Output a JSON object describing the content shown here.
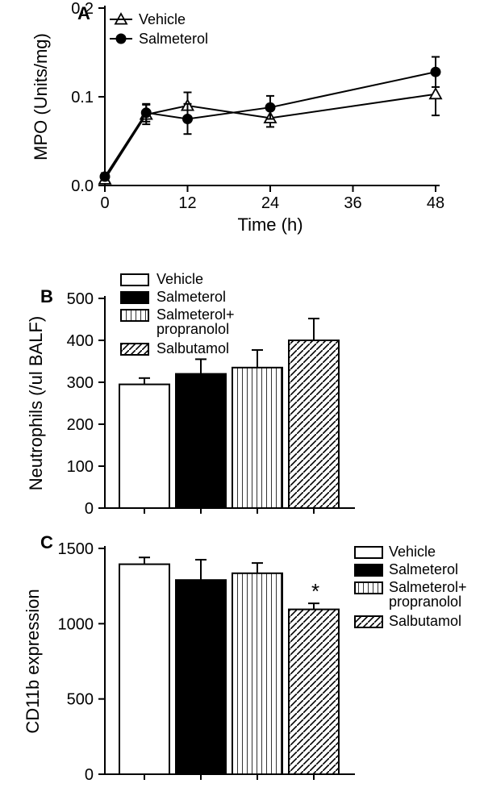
{
  "A": {
    "type": "line",
    "panel_label": "A",
    "x_title": "Time (h)",
    "y_title": "MPO (Units/mg)",
    "xlim": [
      0,
      48
    ],
    "ylim": [
      0,
      0.2
    ],
    "xticks": [
      0,
      12,
      24,
      36,
      48
    ],
    "yticks": [
      0.0,
      0.1,
      0.2
    ],
    "legend": [
      "Vehicle",
      "Salmeterol"
    ],
    "series": {
      "vehicle": {
        "marker": "triangle-open",
        "color": "#000000",
        "points": [
          {
            "x": 0,
            "y": 0.007,
            "err": 0.004
          },
          {
            "x": 6,
            "y": 0.08,
            "err": 0.011
          },
          {
            "x": 12,
            "y": 0.09,
            "err": 0.015
          },
          {
            "x": 24,
            "y": 0.076,
            "err": 0.01
          },
          {
            "x": 48,
            "y": 0.103,
            "err": 0.024
          }
        ]
      },
      "salmeterol": {
        "marker": "circle-filled",
        "color": "#000000",
        "points": [
          {
            "x": 0,
            "y": 0.01,
            "err": 0.004
          },
          {
            "x": 6,
            "y": 0.082,
            "err": 0.01
          },
          {
            "x": 12,
            "y": 0.075,
            "err": 0.017
          },
          {
            "x": 24,
            "y": 0.088,
            "err": 0.013
          },
          {
            "x": 48,
            "y": 0.128,
            "err": 0.017
          }
        ]
      }
    }
  },
  "B": {
    "type": "bar",
    "panel_label": "B",
    "y_title": "Neutrophils (/ul BALF)",
    "ylim": [
      0,
      500
    ],
    "yticks": [
      0,
      100,
      200,
      300,
      400,
      500
    ],
    "legend": [
      "Vehicle",
      "Salmeterol",
      "Salmeterol+\npropranolol",
      "Salbutamol"
    ],
    "bars": [
      {
        "label": "Vehicle",
        "value": 295,
        "err": 15,
        "fill": "#ffffff",
        "pattern": "none"
      },
      {
        "label": "Salmeterol",
        "value": 320,
        "err": 35,
        "fill": "#000000",
        "pattern": "solid"
      },
      {
        "label": "Salmeterol+propranolol",
        "value": 335,
        "err": 42,
        "fill": "#ffffff",
        "pattern": "vertical"
      },
      {
        "label": "Salbutamol",
        "value": 400,
        "err": 52,
        "fill": "#ffffff",
        "pattern": "diagonal"
      }
    ]
  },
  "C": {
    "type": "bar",
    "panel_label": "C",
    "y_title": "CD11b expression",
    "ylim": [
      0,
      1500
    ],
    "yticks": [
      0,
      500,
      1000,
      1500
    ],
    "legend": [
      "Vehicle",
      "Salmeterol",
      "Salmeterol+\npropranolol",
      "Salbutamol"
    ],
    "bars": [
      {
        "label": "Vehicle",
        "value": 1395,
        "err": 45,
        "fill": "#ffffff",
        "pattern": "none",
        "sig": ""
      },
      {
        "label": "Salmeterol",
        "value": 1290,
        "err": 135,
        "fill": "#000000",
        "pattern": "solid",
        "sig": ""
      },
      {
        "label": "Salmeterol+propranolol",
        "value": 1335,
        "err": 68,
        "fill": "#ffffff",
        "pattern": "vertical",
        "sig": ""
      },
      {
        "label": "Salbutamol",
        "value": 1095,
        "err": 40,
        "fill": "#ffffff",
        "pattern": "diagonal",
        "sig": "*"
      }
    ]
  },
  "colors": {
    "background": "#ffffff",
    "axis": "#000000",
    "text": "#000000"
  },
  "fonts": {
    "panel_label_pt": 22,
    "axis_title_pt": 22,
    "tick_label_pt": 20,
    "legend_pt": 18
  }
}
